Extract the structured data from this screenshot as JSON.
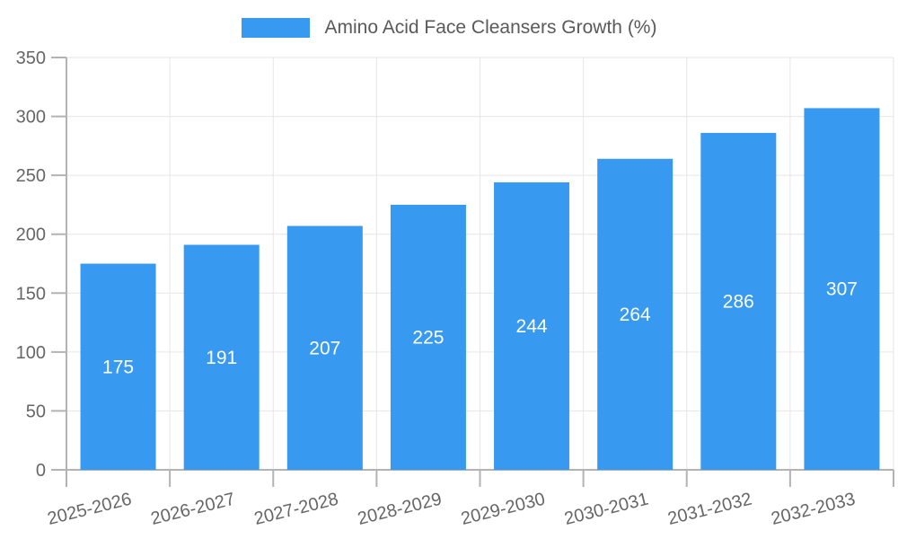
{
  "chart_data": {
    "type": "bar",
    "title": "Amino Acid Face Cleansers Growth (%)",
    "legend_position": "top-center",
    "categories": [
      "2025-2026",
      "2026-2027",
      "2027-2028",
      "2028-2029",
      "2029-2030",
      "2030-2031",
      "2031-2032",
      "2032-2033"
    ],
    "series": [
      {
        "name": "Amino Acid Face Cleansers Growth (%)",
        "values": [
          175,
          191,
          207,
          225,
          244,
          264,
          286,
          307
        ]
      }
    ],
    "xlabel": "",
    "ylabel": "",
    "ylim": [
      0,
      350
    ],
    "ytick_step": 50,
    "yticks": [
      0,
      50,
      100,
      150,
      200,
      250,
      300,
      350
    ],
    "grid": true,
    "value_labels": "inside-center",
    "colors": {
      "bar": "#3899f0",
      "value_label": "#ffffff",
      "axis": "#b3b3b3",
      "grid": "#e6e6e6",
      "tick_label": "#666666",
      "legend_text": "#595959",
      "background": "#ffffff"
    }
  }
}
